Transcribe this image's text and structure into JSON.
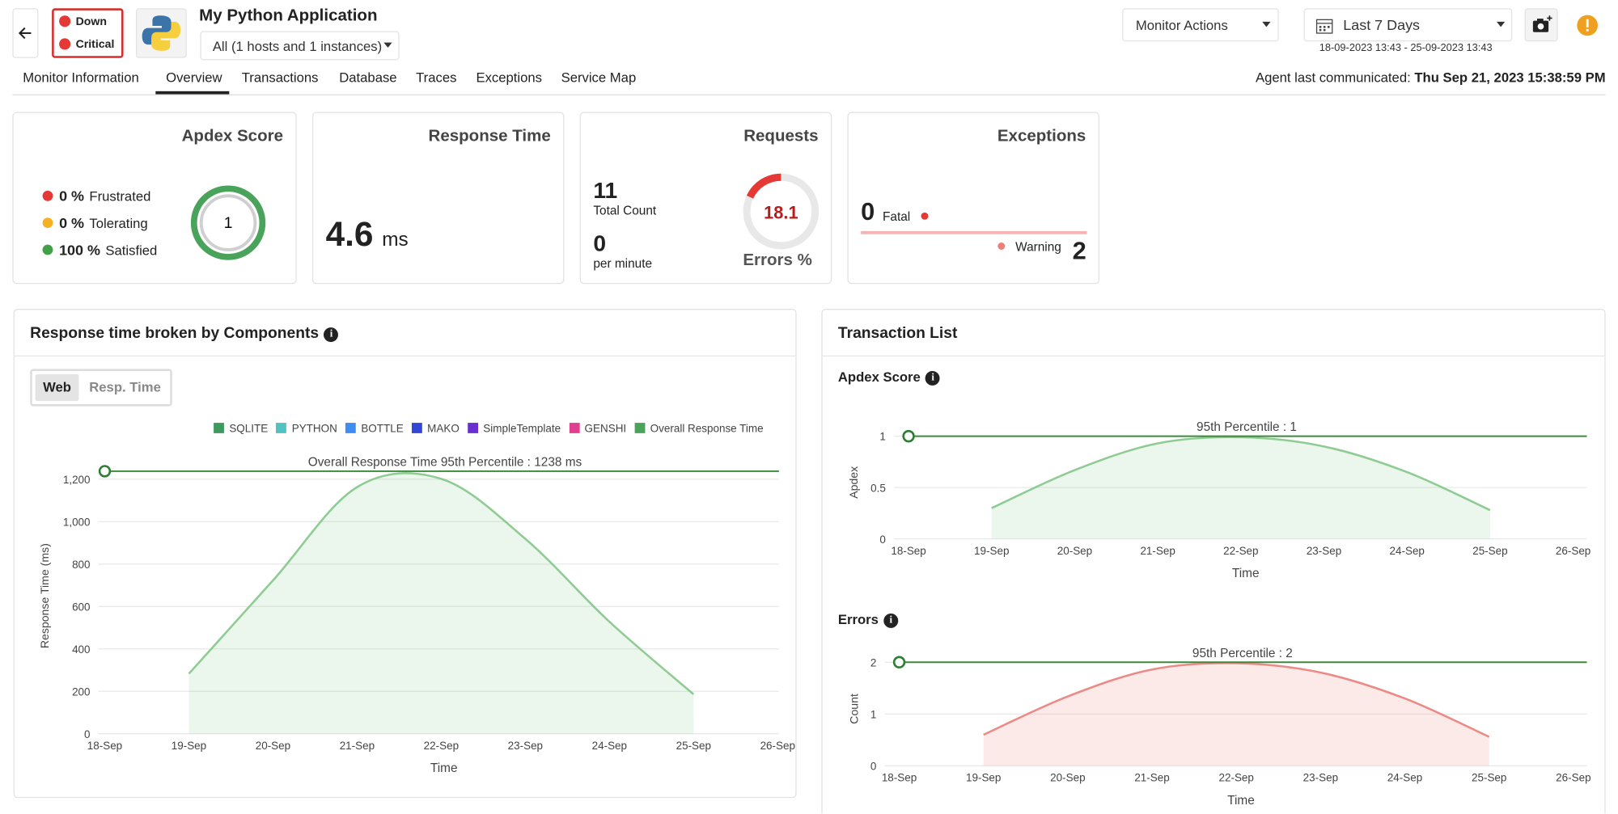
{
  "header": {
    "title": "My Python Application",
    "status": [
      "Down",
      "Critical"
    ],
    "instances": "All (1 hosts and 1 instances)",
    "monitor_actions": "Monitor Actions",
    "period": "Last 7 Days",
    "range": "18-09-2023 13:43 - 25-09-2023 13:43"
  },
  "tabs": [
    "Monitor Information",
    "Overview",
    "Transactions",
    "Database",
    "Traces",
    "Exceptions",
    "Service Map"
  ],
  "agent": {
    "label": "Agent last communicated:",
    "time": "Thu Sep 21, 2023 15:38:59 PM"
  },
  "cards": {
    "apdex": {
      "title": "Apdex Score",
      "rows": [
        {
          "value": "0 %",
          "label": "Frustrated",
          "color": "#e53935"
        },
        {
          "value": "0 %",
          "label": "Tolerating",
          "color": "#f5b025"
        },
        {
          "value": "100 %",
          "label": "Satisfied",
          "color": "#43a047"
        }
      ],
      "score": "1"
    },
    "response": {
      "title": "Response Time",
      "value": "4.6",
      "unit": "ms"
    },
    "requests": {
      "title": "Requests",
      "total": "11",
      "total_label": "Total Count",
      "rate": "0",
      "rate_label": "per minute",
      "errors": 18.1,
      "errors_label": "Errors %"
    },
    "exceptions": {
      "title": "Exceptions",
      "fatal": "0",
      "fatal_label": "Fatal",
      "warning_label": "Warning",
      "warning": "2"
    }
  },
  "components": {
    "title": "Response time broken by Components",
    "toggle": [
      "Web",
      "Resp. Time"
    ],
    "chart_data": {
      "type": "area",
      "x": [
        "18-Sep",
        "19-Sep",
        "20-Sep",
        "21-Sep",
        "22-Sep",
        "23-Sep",
        "24-Sep",
        "25-Sep",
        "26-Sep"
      ],
      "legend": [
        {
          "name": "SQLITE",
          "color": "#3c9a5f"
        },
        {
          "name": "PYTHON",
          "color": "#4fc3c3"
        },
        {
          "name": "BOTTLE",
          "color": "#3d8ef0"
        },
        {
          "name": "MAKO",
          "color": "#3347d6"
        },
        {
          "name": "SimpleTemplate",
          "color": "#6a2fd0"
        },
        {
          "name": "GENSHI",
          "color": "#e0418f"
        }
      ],
      "series": [
        {
          "name": "Overall Response Time",
          "color": "#8fcc93",
          "values": [
            null,
            283,
            723,
            1163,
            1202,
            919,
            528,
            186,
            null
          ]
        }
      ],
      "ylim": [
        0,
        1300
      ],
      "yticks": [
        0,
        200,
        400,
        600,
        800,
        {
          "value": 1000,
          "label": "1,000"
        },
        {
          "value": 1200,
          "label": "1,200"
        }
      ],
      "ylabel": "Response Time (ms)",
      "xlabel": "Time",
      "grid": true,
      "percentile": {
        "value": 1238,
        "label": "Overall Response Time 95th Percentile : 1238 ms",
        "color": "#3a8a3a"
      }
    }
  },
  "transactions": {
    "title": "Transaction List",
    "charts": [
      {
        "heading": "Apdex Score",
        "chart_data": {
          "type": "area",
          "x": [
            "18-Sep",
            "19-Sep",
            "20-Sep",
            "21-Sep",
            "22-Sep",
            "23-Sep",
            "24-Sep",
            "25-Sep",
            "26-Sep"
          ],
          "series": [
            {
              "name": "Apdex",
              "color": "#8fcc93",
              "values": [
                null,
                0.3,
                0.67,
                0.93,
                0.99,
                0.9,
                0.65,
                0.28,
                null
              ]
            }
          ],
          "ylim": [
            0,
            1.1
          ],
          "yticks": [
            0,
            0.5,
            1
          ],
          "ylabel": "Apdex",
          "xlabel": "Time",
          "grid": true,
          "percentile": {
            "value": 1,
            "label": "95th Percentile : 1",
            "color": "#3a8a3a"
          }
        }
      },
      {
        "heading": "Errors",
        "chart_data": {
          "type": "area",
          "x": [
            "18-Sep",
            "19-Sep",
            "20-Sep",
            "21-Sep",
            "22-Sep",
            "23-Sep",
            "24-Sep",
            "25-Sep",
            "26-Sep"
          ],
          "series": [
            {
              "name": "Errors",
              "color": "#ec8a86",
              "values": [
                null,
                0.6,
                1.34,
                1.86,
                1.98,
                1.8,
                1.3,
                0.56,
                null
              ]
            }
          ],
          "ylim": [
            0,
            2.2
          ],
          "yticks": [
            0,
            1,
            2
          ],
          "ylabel": "Count",
          "xlabel": "Time",
          "grid": true,
          "percentile": {
            "value": 2,
            "label": "95th Percentile : 2",
            "color": "#3a8a3a"
          }
        }
      }
    ]
  }
}
